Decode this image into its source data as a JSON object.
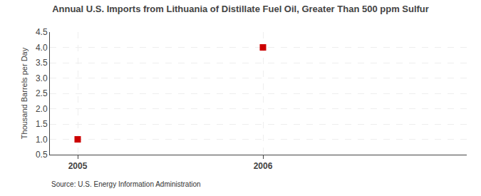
{
  "chart_data": {
    "type": "scatter",
    "title": "Annual U.S. Imports from Lithuania of Distillate Fuel Oil, Greater Than 500 ppm Sulfur",
    "ylabel": "Thousand Barrels per Day",
    "x": [
      2005,
      2006
    ],
    "values": [
      1.0,
      4.0
    ],
    "color": "#cc0000",
    "marker": "square",
    "xlim": [
      2004.85,
      2007.1
    ],
    "xticks": [
      2005,
      2006
    ],
    "ylim": [
      0.5,
      4.5
    ],
    "yticks": [
      0.5,
      {
        "value": 1.0,
        "label": "1.0"
      },
      1.5,
      {
        "value": 2.0,
        "label": "2.0"
      },
      2.5,
      {
        "value": 3.0,
        "label": "3.0"
      },
      3.5,
      {
        "value": 4.0,
        "label": "4.0"
      },
      4.5
    ],
    "grid": true,
    "annotations": [
      "Source: U.S. Energy Information Administration"
    ]
  }
}
